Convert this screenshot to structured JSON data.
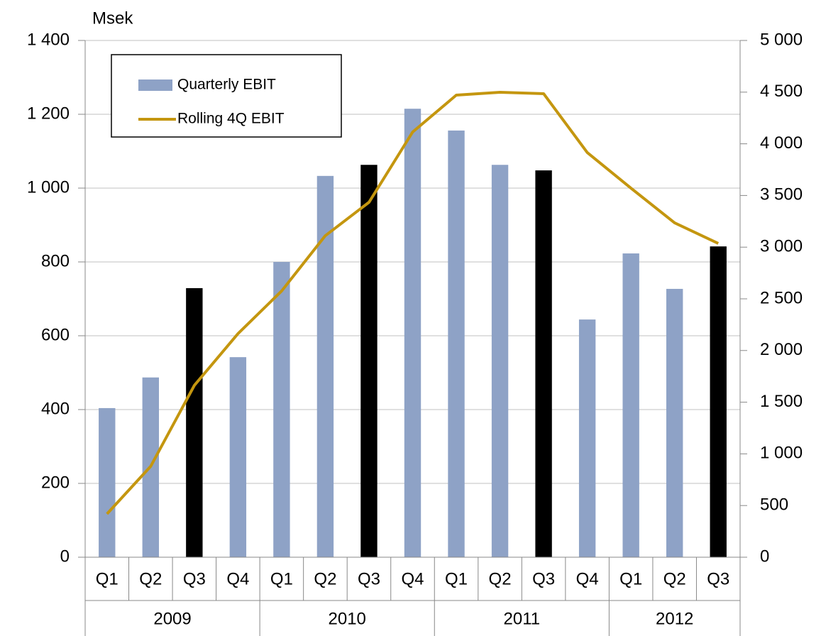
{
  "chart_data": {
    "type": "bar_line",
    "y_label": "Msek",
    "categories": [
      "Q1",
      "Q2",
      "Q3",
      "Q4",
      "Q1",
      "Q2",
      "Q3",
      "Q4",
      "Q1",
      "Q2",
      "Q3",
      "Q4",
      "Q1",
      "Q2",
      "Q3"
    ],
    "x_groups": [
      {
        "label": "2009",
        "count": 4
      },
      {
        "label": "2010",
        "count": 4
      },
      {
        "label": "2011",
        "count": 4
      },
      {
        "label": "2012",
        "count": 3
      }
    ],
    "series": [
      {
        "name": "Quarterly EBIT",
        "type": "bar",
        "axis": "y",
        "colors": [
          "#8ea2c6",
          "#8ea2c6",
          "#000000",
          "#8ea2c6",
          "#8ea2c6",
          "#8ea2c6",
          "#000000",
          "#8ea2c6",
          "#8ea2c6",
          "#8ea2c6",
          "#000000",
          "#8ea2c6",
          "#8ea2c6",
          "#8ea2c6",
          "#000000"
        ],
        "color": "#8ea2c6",
        "values": [
          404,
          487,
          729,
          542,
          800,
          1033,
          1063,
          1215,
          1156,
          1063,
          1048,
          644,
          823,
          727,
          842
        ]
      },
      {
        "name": "Rolling 4Q EBIT",
        "type": "line",
        "axis": "y2",
        "color": "#c4960f",
        "values": [
          419,
          879,
          1662,
          2163,
          2576,
          3111,
          3434,
          4114,
          4471,
          4499,
          4485,
          3915,
          3571,
          3235,
          3036
        ]
      }
    ],
    "ylim": [
      0,
      1400
    ],
    "yticks": [
      0,
      200,
      400,
      600,
      800,
      {
        "value": 1000,
        "label": "1 000"
      },
      {
        "value": 1200,
        "label": "1 200"
      },
      {
        "value": 1400,
        "label": "1 400"
      }
    ],
    "y2lim": [
      0,
      5000
    ],
    "y2ticks": [
      0,
      500,
      {
        "value": 1000,
        "label": "1 000"
      },
      {
        "value": 1500,
        "label": "1 500"
      },
      {
        "value": 2000,
        "label": "2 000"
      },
      {
        "value": 2500,
        "label": "2 500"
      },
      {
        "value": 3000,
        "label": "3 000"
      },
      {
        "value": 3500,
        "label": "3 500"
      },
      {
        "value": 4000,
        "label": "4 000"
      },
      {
        "value": 4500,
        "label": "4 500"
      },
      {
        "value": 5000,
        "label": "5 000"
      }
    ],
    "grid": true,
    "legend": "upper left"
  }
}
